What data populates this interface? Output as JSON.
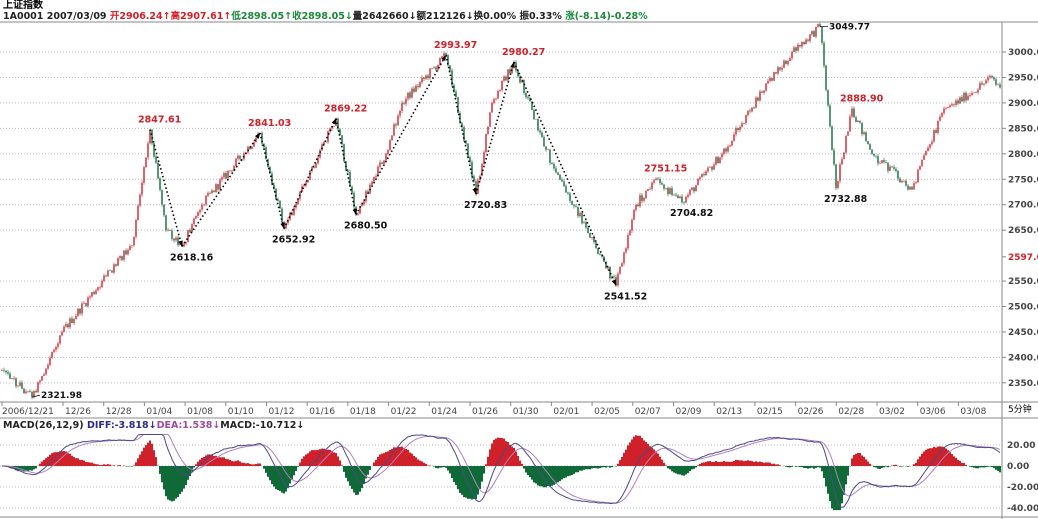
{
  "header": {
    "title": "上证指数",
    "code": "1A0001",
    "date": "2007/03/09",
    "open": "开2906.24↑",
    "high": "高2907.61↑",
    "low": "低2898.05↑",
    "close": "收2898.05↓",
    "volume": "量2642660↓",
    "amount": "额212126↓",
    "turnover": "换0.00%",
    "amplitude": "振0.33%",
    "change": "涨(-8.14)-0.28%"
  },
  "macd_header": {
    "name": "MACD(26,12,9)",
    "diff": "DIFF:-3.818↓",
    "dea": "DEA:1.538↓",
    "macd": "MACD:-10.712↓"
  },
  "period": "5分钟",
  "colors": {
    "up": "#d0202a",
    "down": "#0f6a38",
    "diff": "#4a4a8a",
    "dea": "#b080c0",
    "grid": "#bbbbbb"
  },
  "chart_data": {
    "type": "candlestick",
    "y_axis": {
      "ticks": [
        "3000.0",
        "2950.0",
        "2900.0",
        "2850.0",
        "2800.0",
        "2750.0",
        "2700.0",
        "2650.0",
        "2597.6",
        "2550.0",
        "2500.0",
        "2450.0",
        "2400.0",
        "2350.0"
      ],
      "range": [
        2300,
        3090
      ],
      "current": "2597.6"
    },
    "x_axis": {
      "ticks": [
        "2006/12/21",
        "12/26",
        "12/28",
        "01/04",
        "01/08",
        "01/10",
        "01/12",
        "01/16",
        "01/18",
        "01/22",
        "01/24",
        "01/26",
        "01/30",
        "02/01",
        "02/05",
        "02/07",
        "02/09",
        "02/13",
        "02/15",
        "02/26",
        "02/28",
        "03/02",
        "03/06",
        "03/08"
      ],
      "bar_count": 500
    },
    "path": [
      [
        0,
        2375
      ],
      [
        15,
        2322
      ],
      [
        30,
        2450
      ],
      [
        50,
        2550
      ],
      [
        65,
        2620
      ],
      [
        74,
        2847.61
      ],
      [
        82,
        2650
      ],
      [
        90,
        2618.16
      ],
      [
        100,
        2700
      ],
      [
        129,
        2841.03
      ],
      [
        141,
        2652.92
      ],
      [
        167,
        2869.22
      ],
      [
        177,
        2680.5
      ],
      [
        192,
        2800
      ],
      [
        200,
        2900
      ],
      [
        222,
        2993.97
      ],
      [
        237,
        2720.83
      ],
      [
        245,
        2900
      ],
      [
        256,
        2980.27
      ],
      [
        275,
        2780
      ],
      [
        307,
        2541.52
      ],
      [
        317,
        2700
      ],
      [
        327,
        2751.15
      ],
      [
        340,
        2704.82
      ],
      [
        360,
        2800
      ],
      [
        380,
        2920
      ],
      [
        395,
        3000
      ],
      [
        409,
        3049.77
      ],
      [
        417,
        2732.88
      ],
      [
        425,
        2888.9
      ],
      [
        435,
        2800
      ],
      [
        455,
        2730
      ],
      [
        470,
        2880
      ],
      [
        495,
        2950
      ],
      [
        499,
        2930
      ]
    ],
    "annotations": [
      {
        "text": "2847.61",
        "bar": 74,
        "price": 2847.61,
        "type": "peak"
      },
      {
        "text": "2618.16",
        "bar": 90,
        "price": 2618.16,
        "type": "trough"
      },
      {
        "text": "2841.03",
        "bar": 129,
        "price": 2841.03,
        "type": "peak"
      },
      {
        "text": "2652.92",
        "bar": 141,
        "price": 2652.92,
        "type": "trough"
      },
      {
        "text": "2869.22",
        "bar": 167,
        "price": 2869.22,
        "type": "peak"
      },
      {
        "text": "2680.50",
        "bar": 177,
        "price": 2680.5,
        "type": "trough"
      },
      {
        "text": "2993.97",
        "bar": 222,
        "price": 2993.97,
        "type": "peak"
      },
      {
        "text": "2720.83",
        "bar": 237,
        "price": 2720.83,
        "type": "trough"
      },
      {
        "text": "2980.27",
        "bar": 256,
        "price": 2980.27,
        "type": "peak"
      },
      {
        "text": "2541.52",
        "bar": 307,
        "price": 2541.52,
        "type": "trough"
      },
      {
        "text": "2751.15",
        "bar": 327,
        "price": 2751.15,
        "type": "peak"
      },
      {
        "text": "2704.82",
        "bar": 340,
        "price": 2704.82,
        "type": "trough"
      },
      {
        "text": "3049.77",
        "bar": 409,
        "price": 3049.77,
        "type": "high"
      },
      {
        "text": "2732.88",
        "bar": 417,
        "price": 2732.88,
        "type": "trough"
      },
      {
        "text": "2888.90",
        "bar": 425,
        "price": 2888.9,
        "type": "peak"
      },
      {
        "text": "2321.98",
        "bar": 15,
        "price": 2321.98,
        "type": "low"
      }
    ],
    "trend_arrows": [
      [
        74,
        90
      ],
      [
        90,
        129
      ],
      [
        129,
        141
      ],
      [
        141,
        167
      ],
      [
        167,
        177
      ],
      [
        177,
        222
      ],
      [
        222,
        237
      ],
      [
        237,
        256
      ],
      [
        256,
        307
      ]
    ],
    "macd_axis": {
      "ticks": [
        "20.00",
        "0.00",
        "-20.00",
        "-40.00"
      ],
      "values": [
        20,
        0,
        -20,
        -40
      ]
    }
  }
}
